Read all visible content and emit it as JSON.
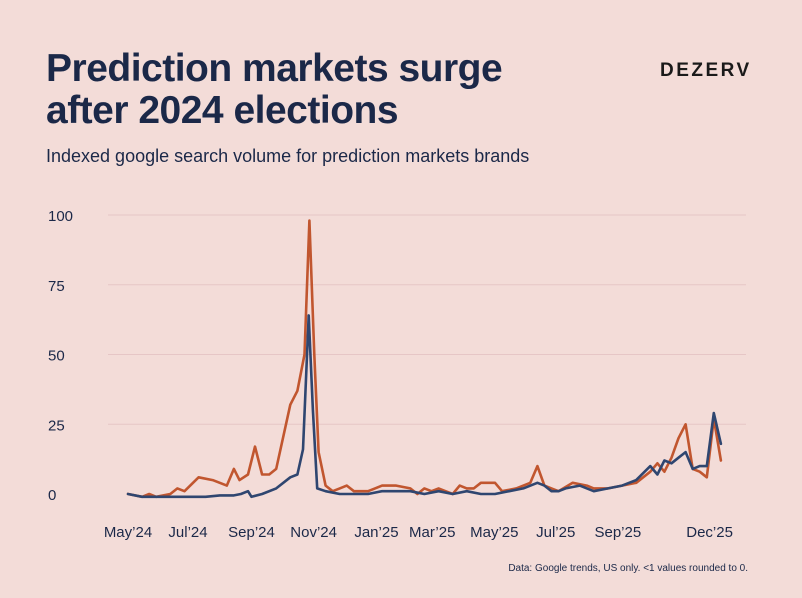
{
  "header": {
    "title_line1": "Prediction markets surge",
    "title_line2": "after 2024 elections",
    "brand": "DEZERV",
    "subtitle": "Indexed google search volume for prediction markets brands"
  },
  "footnote": "Data: Google trends, US only. <1 values rounded to 0.",
  "colors": {
    "series_a": "#c1562f",
    "series_b": "#2f4670",
    "grid": "#e6c6c6",
    "text": "#1b2848"
  },
  "chart_data": {
    "type": "line",
    "title": "Prediction markets surge after 2024 elections",
    "subtitle": "Indexed google search volume for prediction markets brands",
    "ylim": [
      0,
      100
    ],
    "yticks": [
      0,
      25,
      50,
      75,
      100
    ],
    "xlim": [
      0,
      86
    ],
    "xticks": [
      {
        "label": "May’24",
        "x": 0
      },
      {
        "label": "Jul’24",
        "x": 8.5
      },
      {
        "label": "Sep’24",
        "x": 17.5
      },
      {
        "label": "Nov’24",
        "x": 26.3
      },
      {
        "label": "Jan’25",
        "x": 35.2
      },
      {
        "label": "Mar’25",
        "x": 43.1
      },
      {
        "label": "May’25",
        "x": 51.9
      },
      {
        "label": "Jul’25",
        "x": 60.6
      },
      {
        "label": "Sep’25",
        "x": 69.4
      },
      {
        "label": "Dec’25",
        "x": 82.4
      }
    ],
    "series": [
      {
        "color": "#c1562f",
        "points": [
          [
            0,
            0
          ],
          [
            2,
            -1
          ],
          [
            3,
            0
          ],
          [
            4,
            -1
          ],
          [
            6,
            0
          ],
          [
            7,
            2
          ],
          [
            8,
            1
          ],
          [
            10,
            6
          ],
          [
            12,
            5
          ],
          [
            14,
            3
          ],
          [
            15,
            9
          ],
          [
            15.8,
            5
          ],
          [
            17,
            7
          ],
          [
            18,
            17
          ],
          [
            19,
            7
          ],
          [
            20,
            7
          ],
          [
            21,
            9
          ],
          [
            23,
            32
          ],
          [
            24,
            37
          ],
          [
            25,
            50
          ],
          [
            25.7,
            98
          ],
          [
            26.4,
            50
          ],
          [
            27,
            15
          ],
          [
            28,
            3
          ],
          [
            29,
            1
          ],
          [
            30,
            2
          ],
          [
            31,
            3
          ],
          [
            32,
            1
          ],
          [
            34,
            1
          ],
          [
            35,
            2
          ],
          [
            36,
            3
          ],
          [
            38,
            3
          ],
          [
            40,
            2
          ],
          [
            41,
            0
          ],
          [
            42,
            2
          ],
          [
            43,
            1
          ],
          [
            44,
            2
          ],
          [
            45,
            1
          ],
          [
            46,
            0
          ],
          [
            47,
            3
          ],
          [
            48,
            2
          ],
          [
            49,
            2
          ],
          [
            50,
            4
          ],
          [
            52,
            4
          ],
          [
            53,
            1
          ],
          [
            55,
            2
          ],
          [
            57,
            4
          ],
          [
            58,
            10
          ],
          [
            59,
            3
          ],
          [
            60,
            2
          ],
          [
            61,
            1
          ],
          [
            63,
            4
          ],
          [
            65,
            3
          ],
          [
            66,
            2
          ],
          [
            67,
            2
          ],
          [
            68,
            2
          ],
          [
            70,
            3
          ],
          [
            72,
            4
          ],
          [
            74,
            8
          ],
          [
            75,
            11
          ],
          [
            76,
            8
          ],
          [
            77,
            13
          ],
          [
            78,
            20
          ],
          [
            79,
            25
          ],
          [
            80,
            9
          ],
          [
            81,
            8
          ],
          [
            82,
            6
          ],
          [
            83,
            27
          ],
          [
            84,
            12
          ]
        ]
      },
      {
        "color": "#2f4670",
        "points": [
          [
            0,
            0
          ],
          [
            2,
            -1
          ],
          [
            3,
            -1
          ],
          [
            5,
            -1
          ],
          [
            7,
            -1
          ],
          [
            9,
            -1
          ],
          [
            11,
            -1
          ],
          [
            13,
            -0.5
          ],
          [
            15,
            -0.5
          ],
          [
            16,
            0
          ],
          [
            17,
            1
          ],
          [
            17.5,
            -1
          ],
          [
            19,
            0
          ],
          [
            21,
            2
          ],
          [
            23,
            6
          ],
          [
            24,
            7
          ],
          [
            24.8,
            16
          ],
          [
            25.6,
            64
          ],
          [
            26.2,
            30
          ],
          [
            26.8,
            2
          ],
          [
            28,
            1
          ],
          [
            30,
            0
          ],
          [
            32,
            0
          ],
          [
            34,
            0
          ],
          [
            36,
            1
          ],
          [
            38,
            1
          ],
          [
            40,
            1
          ],
          [
            42,
            0
          ],
          [
            44,
            1
          ],
          [
            46,
            0
          ],
          [
            48,
            1
          ],
          [
            50,
            0
          ],
          [
            52,
            0
          ],
          [
            54,
            1
          ],
          [
            56,
            2
          ],
          [
            58,
            4
          ],
          [
            59,
            3
          ],
          [
            60,
            1
          ],
          [
            61,
            1
          ],
          [
            62,
            2
          ],
          [
            64,
            3
          ],
          [
            66,
            1
          ],
          [
            68,
            2
          ],
          [
            70,
            3
          ],
          [
            72,
            5
          ],
          [
            74,
            10
          ],
          [
            75,
            7
          ],
          [
            76,
            12
          ],
          [
            77,
            11
          ],
          [
            78,
            13
          ],
          [
            79,
            15
          ],
          [
            80,
            9
          ],
          [
            81,
            10
          ],
          [
            82,
            10
          ],
          [
            83,
            29
          ],
          [
            84,
            18
          ]
        ]
      }
    ]
  }
}
